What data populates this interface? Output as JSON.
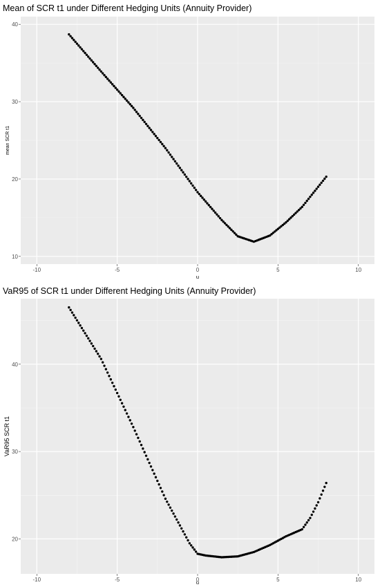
{
  "chart_data": [
    {
      "type": "scatter",
      "title": "Mean of SCR t1 under Different Hedging Units (Annuity Provider)",
      "xlabel": "u",
      "ylabel": "mean SCR t1",
      "xlim": [
        -11,
        11
      ],
      "ylim": [
        9,
        41
      ],
      "xticks": [
        -10,
        -5,
        0,
        5,
        10
      ],
      "yticks": [
        10,
        20,
        30,
        40
      ],
      "grid": true,
      "curve": [
        [
          -8,
          38.7
        ],
        [
          -6,
          33.9
        ],
        [
          -4,
          29.2
        ],
        [
          -2,
          24.0
        ],
        [
          0,
          18.3
        ],
        [
          1.5,
          14.7
        ],
        [
          2.5,
          12.6
        ],
        [
          3.5,
          11.9
        ],
        [
          4.5,
          12.7
        ],
        [
          5.5,
          14.4
        ],
        [
          6.5,
          16.4
        ],
        [
          8,
          20.3
        ]
      ]
    },
    {
      "type": "scatter",
      "title": "VaR95 of SCR t1 under Different Hedging Units (Annuity Provider)",
      "xlabel": "u",
      "ylabel": "VaR95 SCR t1",
      "xlim": [
        -11,
        11
      ],
      "ylim": [
        16,
        47.5
      ],
      "xticks": [
        -10,
        -5,
        0,
        5,
        10
      ],
      "yticks": [
        20,
        30,
        40
      ],
      "grid": true,
      "curve": [
        [
          -8,
          46.5
        ],
        [
          -6,
          40.6
        ],
        [
          -4,
          32.8
        ],
        [
          -2,
          24.6
        ],
        [
          -0.5,
          19.5
        ],
        [
          0,
          18.3
        ],
        [
          0.5,
          18.1
        ],
        [
          1,
          18.0
        ],
        [
          1.5,
          17.9
        ],
        [
          2.5,
          18.0
        ],
        [
          3.5,
          18.5
        ],
        [
          4.5,
          19.3
        ],
        [
          5.5,
          20.3
        ],
        [
          6.5,
          21.1
        ],
        [
          7,
          22.4
        ],
        [
          7.5,
          24.2
        ],
        [
          8,
          26.4
        ]
      ]
    }
  ]
}
